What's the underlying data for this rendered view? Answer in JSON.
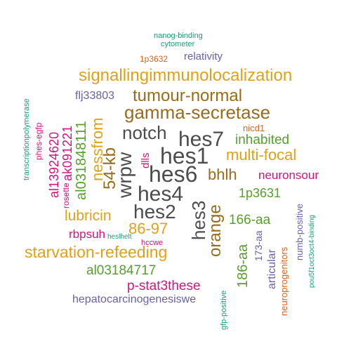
{
  "palette": {
    "gray": "#4d4d4d",
    "gold": "#e0a11a",
    "brown": "#9a6b1a",
    "green": "#55a02a",
    "teal": "#1b9a77",
    "magenta": "#d4127f",
    "purple": "#6b5fa8",
    "orange": "#d8641c"
  },
  "words": [
    {
      "text": "hes1",
      "color": "#4d4d4d"
    },
    {
      "text": "hes6",
      "color": "#4d4d4d"
    },
    {
      "text": "hes4",
      "color": "#4d4d4d"
    },
    {
      "text": "hes2",
      "color": "#4d4d4d"
    },
    {
      "text": "hes7",
      "color": "#4d4d4d"
    },
    {
      "text": "notch",
      "color": "#4d4d4d"
    },
    {
      "text": "wrpw",
      "color": "#4d4d4d"
    },
    {
      "text": "hes3",
      "color": "#4d4d4d"
    },
    {
      "text": "gamma-secretase",
      "color": "#9a6b1a"
    },
    {
      "text": "tumour-normal",
      "color": "#9a6b1a"
    },
    {
      "text": "bhlh",
      "color": "#9a6b1a"
    },
    {
      "text": "orange",
      "color": "#9a6b1a"
    },
    {
      "text": "54-kb",
      "color": "#9a6b1a"
    },
    {
      "text": "signallingimmunolocalization",
      "color": "#e0a11a"
    },
    {
      "text": "starvation-refeeding",
      "color": "#e0a11a"
    },
    {
      "text": "multi-focal",
      "color": "#e0a11a"
    },
    {
      "text": "lubricin",
      "color": "#e0a11a"
    },
    {
      "text": "86-97",
      "color": "#e0a11a"
    },
    {
      "text": "nessfrom",
      "color": "#e0a11a"
    },
    {
      "text": "inhabited",
      "color": "#55a02a"
    },
    {
      "text": "1p3631",
      "color": "#55a02a"
    },
    {
      "text": "166-aa",
      "color": "#55a02a"
    },
    {
      "text": "186-aa",
      "color": "#55a02a"
    },
    {
      "text": "al03184717",
      "color": "#55a02a"
    },
    {
      "text": "al031848111",
      "color": "#55a02a"
    },
    {
      "text": "neuronsour",
      "color": "#d4127f"
    },
    {
      "text": "p-stat3these",
      "color": "#d4127f"
    },
    {
      "text": "rbpsuh",
      "color": "#d4127f"
    },
    {
      "text": "al13924620",
      "color": "#d4127f"
    },
    {
      "text": "ak091221",
      "color": "#d4127f"
    },
    {
      "text": "dlls",
      "color": "#d4127f"
    },
    {
      "text": "hccwe",
      "color": "#d4127f"
    },
    {
      "text": "rosette",
      "color": "#d4127f"
    },
    {
      "text": "relativity",
      "color": "#6b5fa8"
    },
    {
      "text": "flj33803",
      "color": "#6b5fa8"
    },
    {
      "text": "hepatocarcinogenesiswe",
      "color": "#6b5fa8"
    },
    {
      "text": "articular",
      "color": "#6b5fa8"
    },
    {
      "text": "173-aa",
      "color": "#6b5fa8"
    },
    {
      "text": "numb-positive",
      "color": "#6b5fa8"
    },
    {
      "text": "nicd1",
      "color": "#d8641c"
    },
    {
      "text": "1p3632",
      "color": "#d8641c"
    },
    {
      "text": "neuroprogenitors",
      "color": "#d8641c"
    },
    {
      "text": "nanog-binding",
      "color": "#1b9a77"
    },
    {
      "text": "cytometer",
      "color": "#1b9a77"
    },
    {
      "text": "transcriptionpolymerase",
      "color": "#1b9a77"
    },
    {
      "text": "phes-egfp",
      "color": "#d4127f"
    },
    {
      "text": "heslhelt",
      "color": "#1b9a77"
    },
    {
      "text": "gfp-positive",
      "color": "#1b9a77"
    },
    {
      "text": "pou5f1oct3oct4-binding",
      "color": "#1b9a77"
    }
  ]
}
